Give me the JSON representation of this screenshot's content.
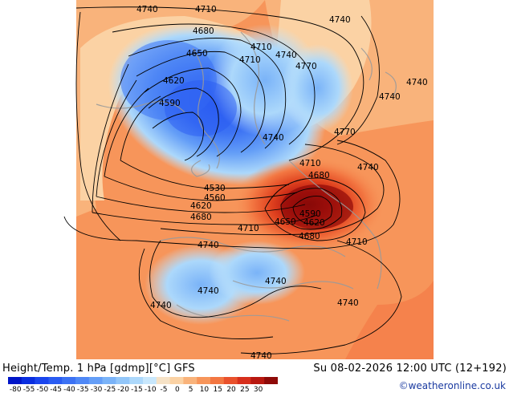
{
  "header": {
    "left_label": "Height/Temp. 1 hPa [gdmp][°C] GFS",
    "right_label": "Su 08-02-2026 12:00 UTC (12+192)",
    "credit": "©weatheronline.co.uk"
  },
  "colorbar": {
    "tick_labels": [
      "-80",
      "-55",
      "-50",
      "-45",
      "-40",
      "-35",
      "-30",
      "-25",
      "-20",
      "-15",
      "-10",
      "-5",
      "0",
      "5",
      "10",
      "15",
      "20",
      "25",
      "30"
    ],
    "colors": [
      "#0015c8",
      "#0a2ee0",
      "#1a45ee",
      "#2a5cf2",
      "#3c72f4",
      "#4f88f6",
      "#649ef7",
      "#7ab3f8",
      "#92c6f9",
      "#acd8fb",
      "#c8e7fc",
      "#f6e2c6",
      "#fbd2a4",
      "#f9b37b",
      "#f7955a",
      "#f37742",
      "#e9512c",
      "#d72f1c",
      "#b81810",
      "#8e0a08"
    ]
  },
  "contour_labels": [
    "4740",
    "4710",
    "4740",
    "4680",
    "4710",
    "4650",
    "4710",
    "4740",
    "4770",
    "4620",
    "4740",
    "4590",
    "4740",
    "4770",
    "4740",
    "4710",
    "4740",
    "4680",
    "4530",
    "4560",
    "4620",
    "4680",
    "4710",
    "4650",
    "4590",
    "4620",
    "4680",
    "4710",
    "4740",
    "4740",
    "4740",
    "4740",
    "4740",
    "4740"
  ],
  "icons": {
    "logo": "weatheronline-logo"
  }
}
